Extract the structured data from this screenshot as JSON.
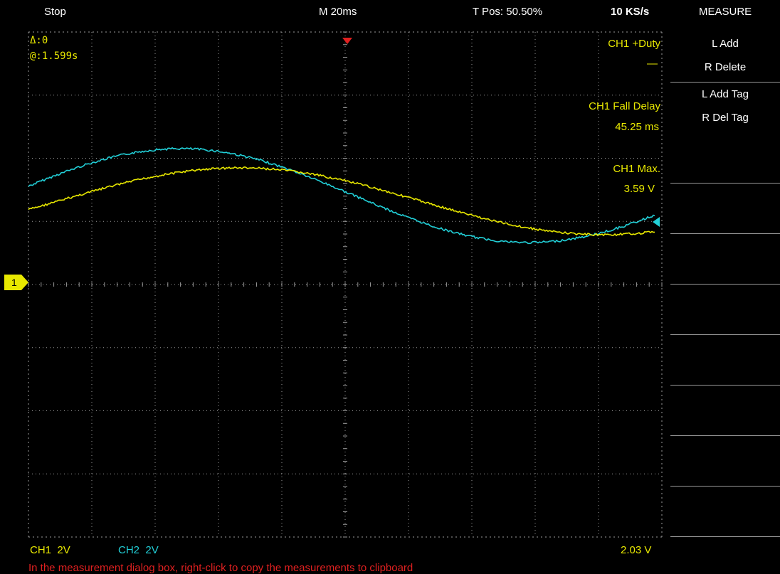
{
  "header": {
    "status": "Stop",
    "timebase": "M 20ms",
    "trigger_position": "T Pos: 50.50%",
    "sample_rate": "10 KS/s",
    "menu_title": "MEASURE"
  },
  "cursor_readout": {
    "delta": "Δ:0",
    "at": "@:1.599s"
  },
  "measurements": [
    {
      "label": "CH1 +Duty",
      "value": "—"
    },
    {
      "label": "CH1 Fall Delay",
      "value": "45.25 ms"
    },
    {
      "label": "CH1 Max.",
      "value": "3.59 V"
    }
  ],
  "menu": {
    "items": [
      {
        "line1": "L Add",
        "line2": "R Delete"
      },
      {
        "line1": "L Add Tag",
        "line2": "R Del Tag"
      }
    ]
  },
  "channels": {
    "ch1_label": "CH1",
    "ch1_scale": "2V",
    "ch2_label": "CH2",
    "ch2_scale": "2V",
    "ch1_marker": "1",
    "trigger_level": "2.03 V"
  },
  "footer_message": "In the measurement dialog box, right-click to copy the measurements to clipboard",
  "colors": {
    "ch1": "#e8e800",
    "ch2": "#22d0d8",
    "trigger": "#e02020",
    "grid": "#9a9a9a"
  },
  "icons": {
    "trigger_marker": "red-down-triangle",
    "ch2_marker": "cyan-left-triangle",
    "ch1_marker": "yellow-arrow-flag"
  }
}
